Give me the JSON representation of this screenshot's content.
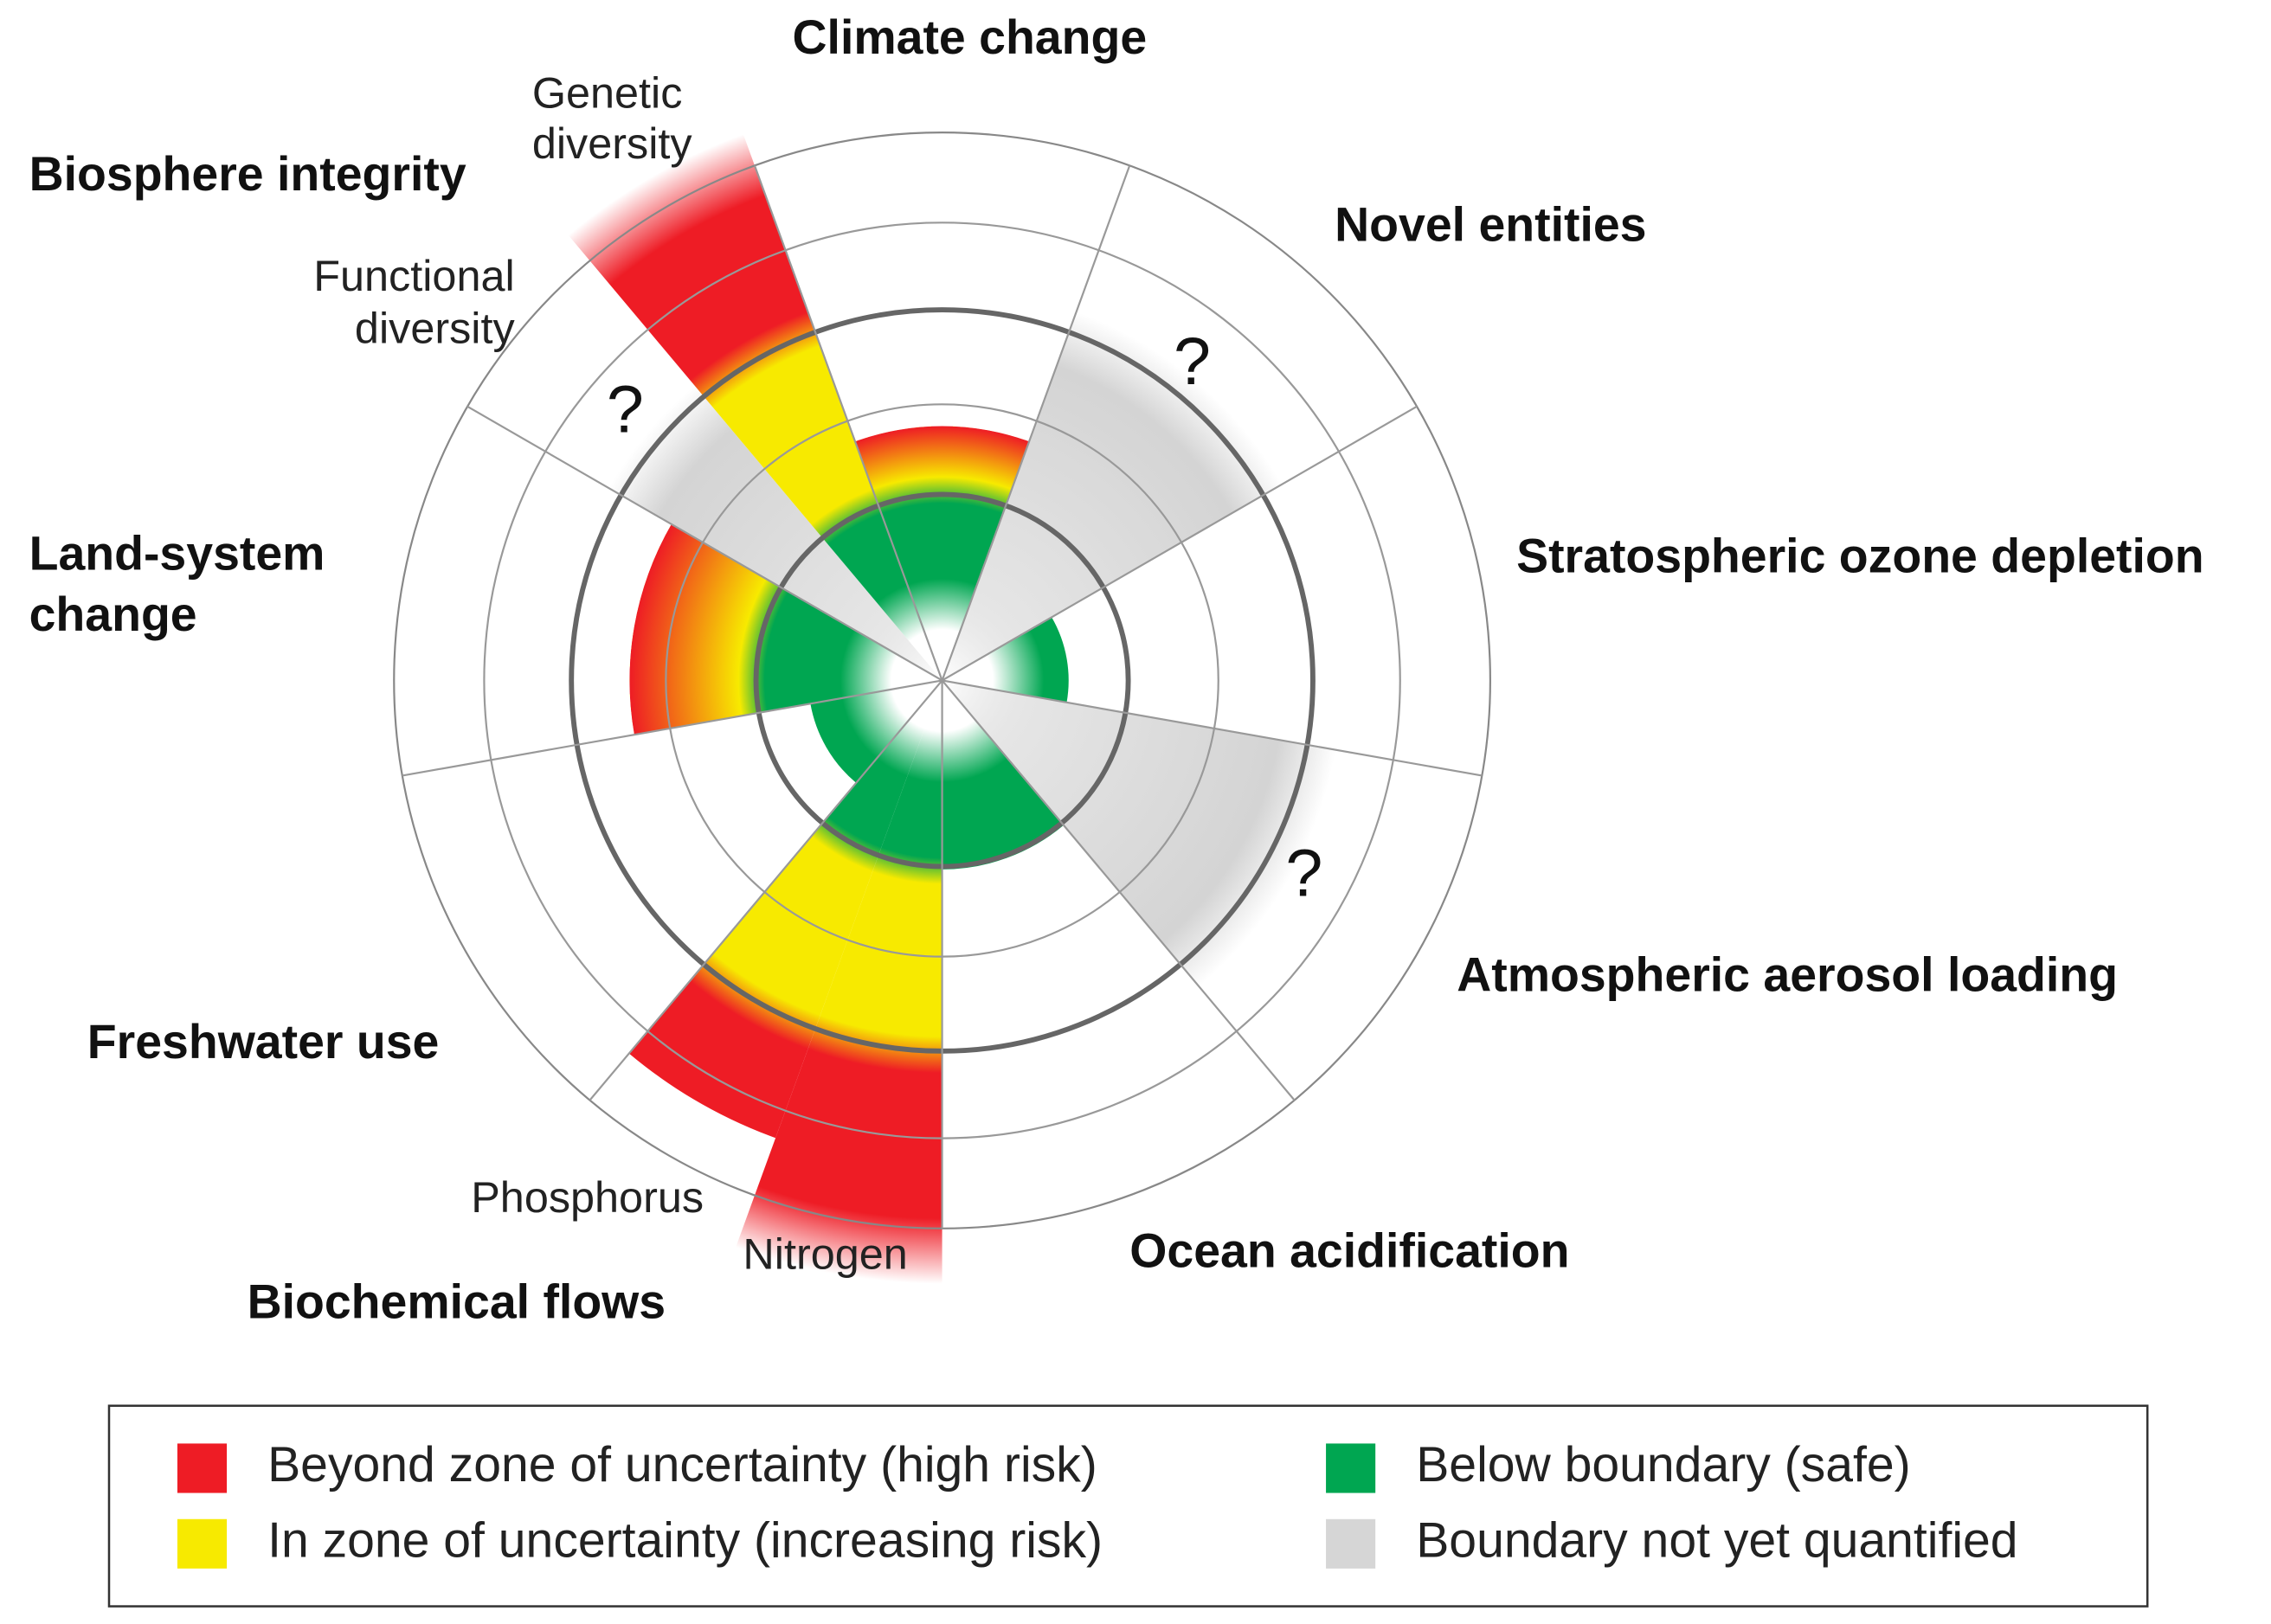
{
  "boundaries": [
    {
      "lines": [
        "Climate change"
      ]
    },
    {
      "lines": [
        "Novel entities"
      ]
    },
    {
      "lines": [
        "Stratospheric ozone depletion"
      ]
    },
    {
      "lines": [
        "Atmospheric aerosol loading"
      ]
    },
    {
      "lines": [
        "Ocean acidification"
      ]
    },
    {
      "lines": [
        "Biochemical flows"
      ]
    },
    {
      "lines": [
        "Freshwater use"
      ]
    },
    {
      "lines": [
        "Land-system",
        "change"
      ]
    },
    {
      "lines": [
        "Biosphere integrity"
      ]
    }
  ],
  "sub_labels": [
    {
      "lines": [
        "Genetic",
        "diversity"
      ]
    },
    {
      "lines": [
        "Functional",
        "diversity"
      ]
    },
    {
      "lines": [
        "Phosphorus"
      ]
    },
    {
      "lines": [
        "Nitrogen"
      ]
    }
  ],
  "question_marks": [
    "?",
    "?",
    "?"
  ],
  "legend": {
    "items": [
      {
        "label": "Beyond zone of uncertainty (high risk)",
        "color": "#ee1c25"
      },
      {
        "label": "In zone of uncertainty (increasing risk)",
        "color": "#f7ea00"
      },
      {
        "label": "Below boundary (safe)",
        "color": "#00a651"
      },
      {
        "label": "Boundary not yet quantified",
        "color": "#d6d6d6"
      }
    ]
  }
}
